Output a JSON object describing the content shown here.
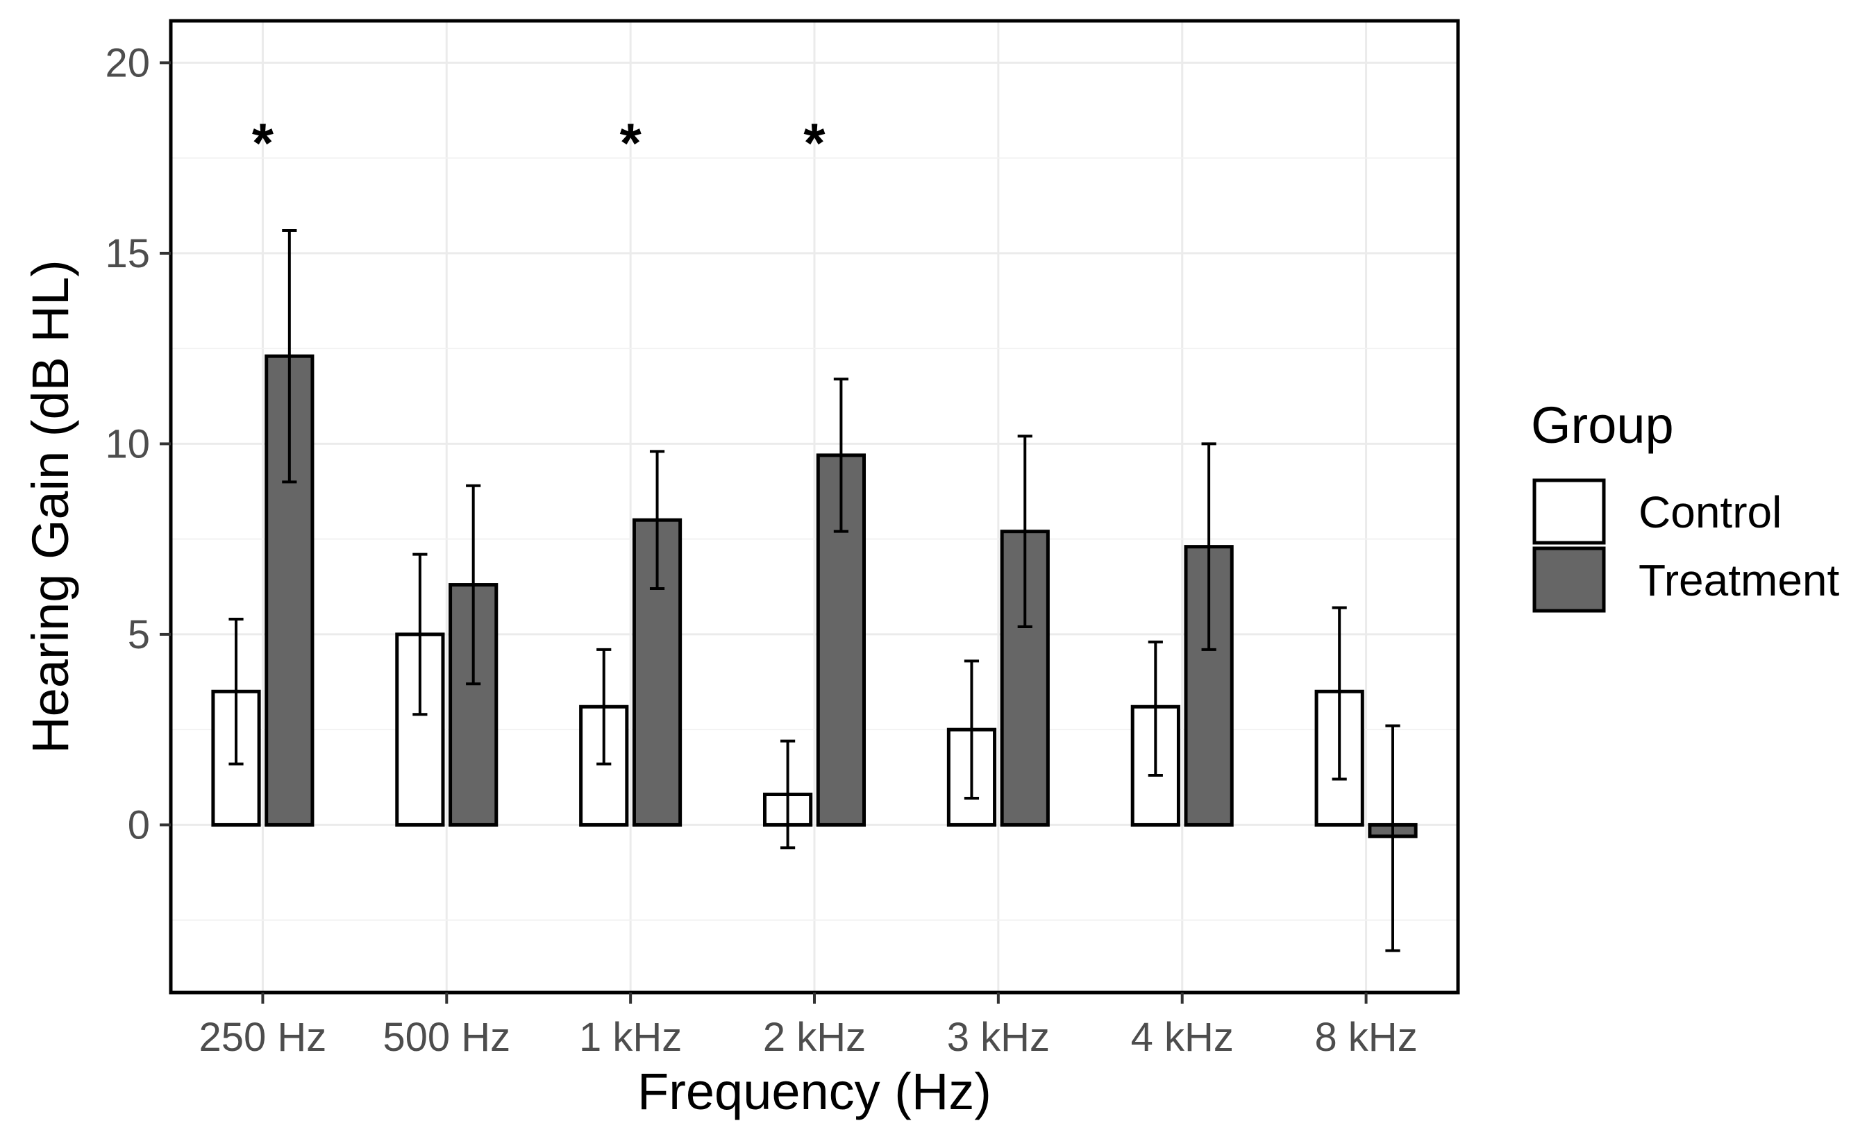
{
  "chart_data": {
    "type": "bar",
    "title": "",
    "xlabel": "Frequency (Hz)",
    "ylabel": "Hearing Gain (dB HL)",
    "categories": [
      "250 Hz",
      "500 Hz",
      "1 kHz",
      "2 kHz",
      "3 kHz",
      "4 kHz",
      "8 kHz"
    ],
    "ylim": [
      -4.4,
      21.1
    ],
    "yticks": [
      0,
      5,
      10,
      15,
      20
    ],
    "yticklabels": [
      "0",
      "5",
      "10",
      "15",
      "20"
    ],
    "grid": true,
    "legend": {
      "title": "Group",
      "position": "right"
    },
    "series": [
      {
        "name": "Control",
        "color": "#ffffff",
        "values": [
          3.5,
          5.0,
          3.1,
          0.8,
          2.5,
          3.1,
          3.5
        ],
        "err_low": [
          1.6,
          2.9,
          1.6,
          -0.6,
          0.7,
          1.3,
          1.2
        ],
        "err_high": [
          5.4,
          7.1,
          4.6,
          2.2,
          4.3,
          4.8,
          5.7
        ]
      },
      {
        "name": "Treatment",
        "color": "#666666",
        "values": [
          12.3,
          6.3,
          8.0,
          9.7,
          7.7,
          7.3,
          -0.3
        ],
        "err_low": [
          9.0,
          3.7,
          6.2,
          7.7,
          5.2,
          4.6,
          -3.3
        ],
        "err_high": [
          15.6,
          8.9,
          9.8,
          11.7,
          10.2,
          10.0,
          2.6
        ]
      }
    ],
    "annotations": [
      {
        "category": "250 Hz",
        "text": "*",
        "y": 18.3
      },
      {
        "category": "1 kHz",
        "text": "*",
        "y": 18.3
      },
      {
        "category": "2 kHz",
        "text": "*",
        "y": 18.3
      }
    ]
  }
}
